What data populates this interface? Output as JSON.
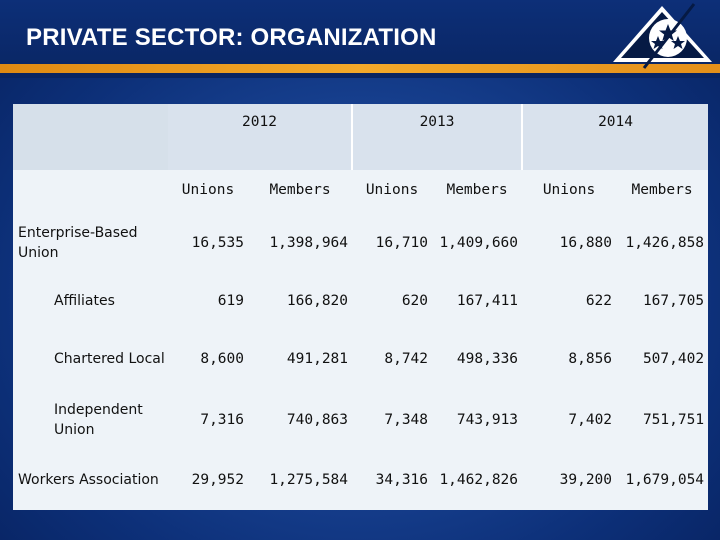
{
  "header": {
    "title": "PRIVATE SECTOR: ORGANIZATION"
  },
  "colors": {
    "header_bg": "#0a2766",
    "stripe": "#f4a92a",
    "panel": "#eef3f8",
    "year_row": "#d9e2ed"
  },
  "logo": {
    "icon": "triangle-stars-icon"
  },
  "table": {
    "years": [
      "2012",
      "2013",
      "2014"
    ],
    "subheaders": [
      "Unions",
      "Members",
      "Unions",
      "Members",
      "Unions",
      "Members"
    ],
    "rows": [
      {
        "label": "Enterprise-Based Union",
        "values": [
          "16,535",
          "1,398,964",
          "16,710",
          "1,409,660",
          "16,880",
          "1,426,858"
        ]
      },
      {
        "label": "Affiliates",
        "values": [
          "619",
          "166,820",
          "620",
          "167,411",
          "622",
          "167,705"
        ]
      },
      {
        "label": "Chartered Local",
        "values": [
          "8,600",
          "491,281",
          "8,742",
          "498,336",
          "8,856",
          "507,402"
        ]
      },
      {
        "label": "Independent Union",
        "values": [
          "7,316",
          "740,863",
          "7,348",
          "743,913",
          "7,402",
          "751,751"
        ]
      },
      {
        "label": "Workers Association",
        "values": [
          "29,952",
          "1,275,584",
          "34,316",
          "1,462,826",
          "39,200",
          "1,679,054"
        ]
      }
    ]
  }
}
